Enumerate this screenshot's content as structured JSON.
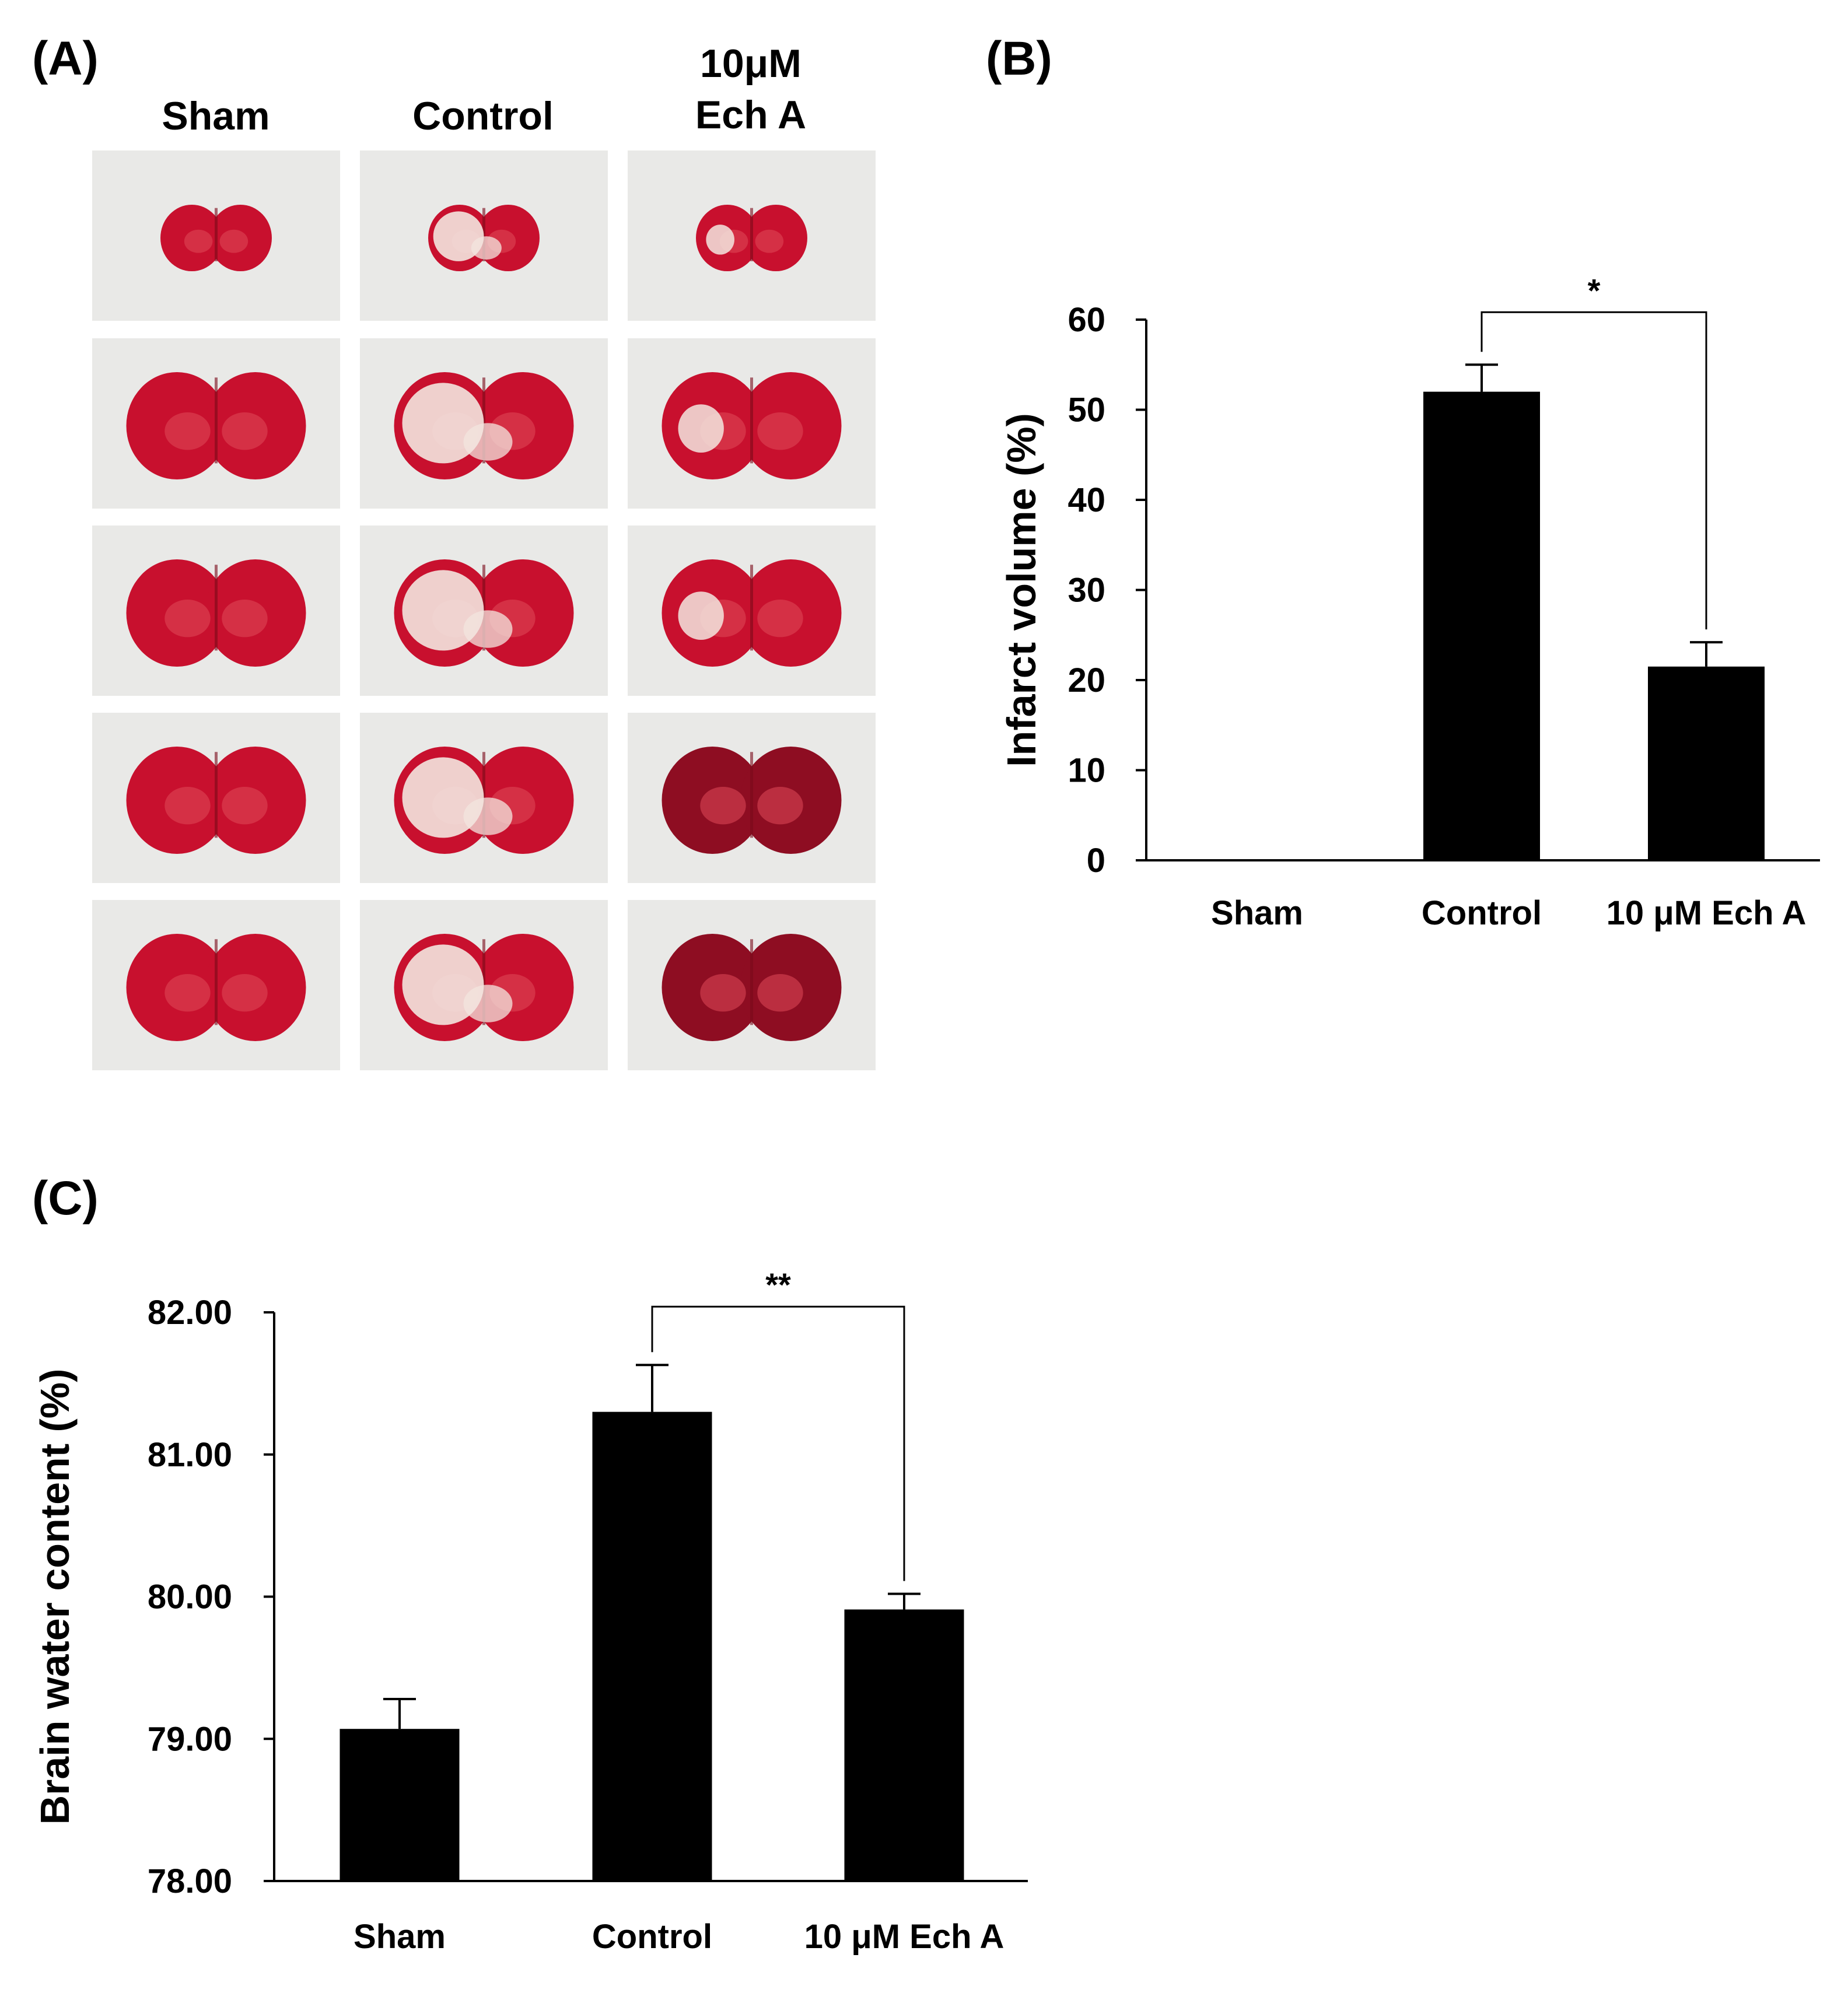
{
  "panels": {
    "A": {
      "label": "(A)",
      "columns": [
        {
          "lines": [
            "Sham"
          ]
        },
        {
          "lines": [
            "Control"
          ]
        },
        {
          "lines": [
            "10μM",
            "Ech A"
          ]
        }
      ],
      "rows": 5
    },
    "B": {
      "label": "(B)"
    },
    "C": {
      "label": "(C)"
    }
  },
  "colors": {
    "bar": "#000000",
    "tissue_red": "#c8102e",
    "tissue_dark": "#8e0d22",
    "infarct_white": "#f3e6df",
    "photo_bg": "#e9e9e7"
  },
  "chart_data": [
    {
      "id": "B",
      "type": "bar",
      "title": "",
      "xlabel": "",
      "ylabel": "Infarct volume (%)",
      "categories": [
        "Sham",
        "Control",
        "10 μM Ech A"
      ],
      "values": [
        0,
        52,
        21.5
      ],
      "errors": [
        0,
        3,
        2.7
      ],
      "ylim": [
        0,
        60
      ],
      "yticks": [
        0,
        10,
        20,
        30,
        40,
        50,
        60
      ],
      "tick_decimals": 0,
      "grid": false,
      "significance": [
        {
          "from": 1,
          "to": 2,
          "label": "*"
        }
      ]
    },
    {
      "id": "C",
      "type": "bar",
      "title": "",
      "xlabel": "",
      "ylabel": "Brain water content (%)",
      "categories": [
        "Sham",
        "Control",
        "10 μM Ech A"
      ],
      "values": [
        79.07,
        81.3,
        79.91
      ],
      "errors": [
        0.21,
        0.33,
        0.11
      ],
      "ylim": [
        78,
        82
      ],
      "yticks": [
        78,
        79,
        80,
        81,
        82
      ],
      "tick_decimals": 2,
      "grid": false,
      "significance": [
        {
          "from": 1,
          "to": 2,
          "label": "**"
        }
      ]
    }
  ]
}
